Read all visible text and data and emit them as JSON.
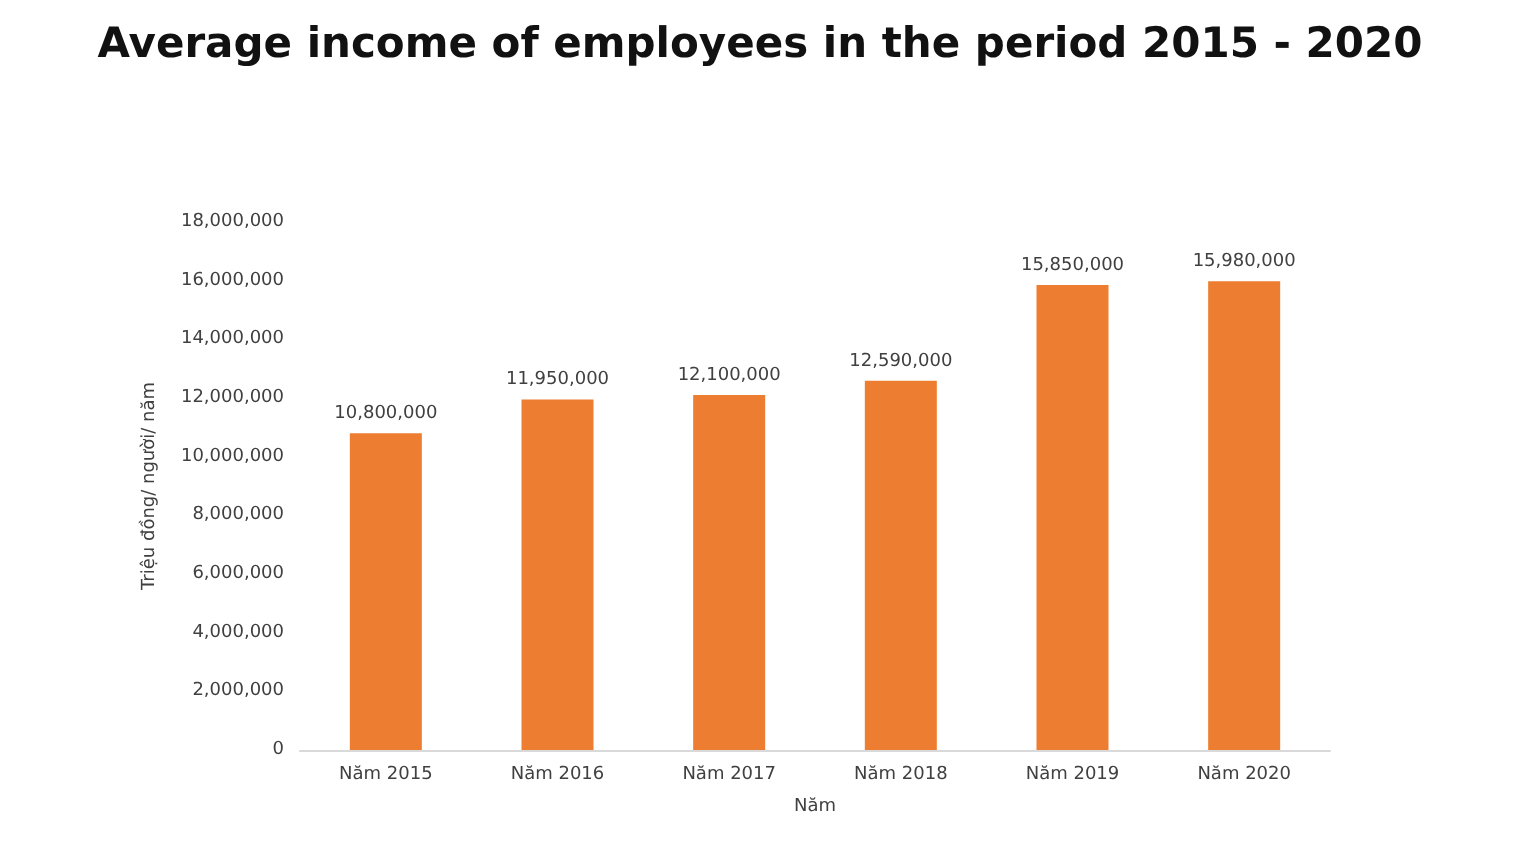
{
  "chart_data": {
    "type": "bar",
    "title": "Average income of employees in the period 2015 - 2020",
    "xlabel": "Năm",
    "ylabel": "Triệu đồng/ người/ năm",
    "categories": [
      "Năm 2015",
      "Năm 2016",
      "Năm 2017",
      "Năm 2018",
      "Năm 2019",
      "Năm 2020"
    ],
    "values": [
      10800000,
      11950000,
      12100000,
      12590000,
      15850000,
      15980000
    ],
    "value_labels": [
      "10,800,000",
      "11,950,000",
      "12,100,000",
      "12,590,000",
      "15,850,000",
      "15,980,000"
    ],
    "color": "#ed7d31",
    "ylim": [
      0,
      18000000
    ],
    "yticks": [
      {
        "value": 0,
        "label": "0"
      },
      {
        "value": 2000000,
        "label": "2,000,000"
      },
      {
        "value": 4000000,
        "label": "4,000,000"
      },
      {
        "value": 6000000,
        "label": "6,000,000"
      },
      {
        "value": 8000000,
        "label": "8,000,000"
      },
      {
        "value": 10000000,
        "label": "10,000,000"
      },
      {
        "value": 12000000,
        "label": "12,000,000"
      },
      {
        "value": 14000000,
        "label": "14,000,000"
      },
      {
        "value": 16000000,
        "label": "16,000,000"
      },
      {
        "value": 18000000,
        "label": "18,000,000"
      }
    ],
    "grid": false
  }
}
